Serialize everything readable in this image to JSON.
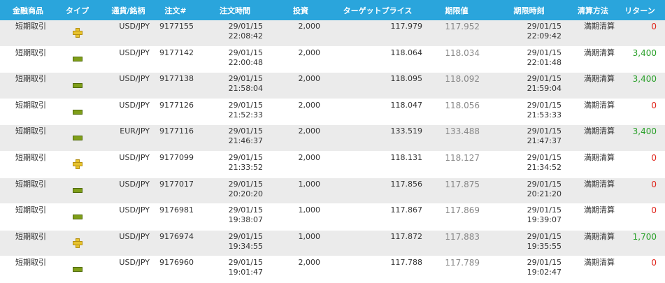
{
  "headers": [
    "金融商品",
    "タイプ",
    "通貨/銘柄",
    "注文#",
    "注文時間",
    "投資",
    "ターゲットプライス",
    "期限値",
    "期限時刻",
    "清算方法",
    "リターン"
  ],
  "rows": [
    {
      "product": "短期取引",
      "type": "plus-icon",
      "pair": "USD/JPY",
      "order": "9177155",
      "order_date": "29/01/15",
      "order_time": "22:08:42",
      "invest": "2,000",
      "target": "117.979",
      "expiry_value": "117.952",
      "expiry_date": "29/01/15",
      "expiry_time": "22:09:42",
      "method": "満期清算",
      "ret": "0",
      "ret_color": "#e0281f"
    },
    {
      "product": "短期取引",
      "type": "minus-icon",
      "pair": "USD/JPY",
      "order": "9177142",
      "order_date": "29/01/15",
      "order_time": "22:00:48",
      "invest": "2,000",
      "target": "118.064",
      "expiry_value": "118.034",
      "expiry_date": "29/01/15",
      "expiry_time": "22:01:48",
      "method": "満期清算",
      "ret": "3,400",
      "ret_color": "#2aa02a"
    },
    {
      "product": "短期取引",
      "type": "minus-icon",
      "pair": "USD/JPY",
      "order": "9177138",
      "order_date": "29/01/15",
      "order_time": "21:58:04",
      "invest": "2,000",
      "target": "118.095",
      "expiry_value": "118.092",
      "expiry_date": "29/01/15",
      "expiry_time": "21:59:04",
      "method": "満期清算",
      "ret": "3,400",
      "ret_color": "#2aa02a"
    },
    {
      "product": "短期取引",
      "type": "minus-icon",
      "pair": "USD/JPY",
      "order": "9177126",
      "order_date": "29/01/15",
      "order_time": "21:52:33",
      "invest": "2,000",
      "target": "118.047",
      "expiry_value": "118.056",
      "expiry_date": "29/01/15",
      "expiry_time": "21:53:33",
      "method": "満期清算",
      "ret": "0",
      "ret_color": "#e0281f"
    },
    {
      "product": "短期取引",
      "type": "minus-icon",
      "pair": "EUR/JPY",
      "order": "9177116",
      "order_date": "29/01/15",
      "order_time": "21:46:37",
      "invest": "2,000",
      "target": "133.519",
      "expiry_value": "133.488",
      "expiry_date": "29/01/15",
      "expiry_time": "21:47:37",
      "method": "満期清算",
      "ret": "3,400",
      "ret_color": "#2aa02a"
    },
    {
      "product": "短期取引",
      "type": "plus-icon",
      "pair": "USD/JPY",
      "order": "9177099",
      "order_date": "29/01/15",
      "order_time": "21:33:52",
      "invest": "2,000",
      "target": "118.131",
      "expiry_value": "118.127",
      "expiry_date": "29/01/15",
      "expiry_time": "21:34:52",
      "method": "満期清算",
      "ret": "0",
      "ret_color": "#e0281f"
    },
    {
      "product": "短期取引",
      "type": "minus-icon",
      "pair": "USD/JPY",
      "order": "9177017",
      "order_date": "29/01/15",
      "order_time": "20:20:20",
      "invest": "1,000",
      "target": "117.856",
      "expiry_value": "117.875",
      "expiry_date": "29/01/15",
      "expiry_time": "20:21:20",
      "method": "満期清算",
      "ret": "0",
      "ret_color": "#e0281f"
    },
    {
      "product": "短期取引",
      "type": "minus-icon",
      "pair": "USD/JPY",
      "order": "9176981",
      "order_date": "29/01/15",
      "order_time": "19:38:07",
      "invest": "1,000",
      "target": "117.867",
      "expiry_value": "117.869",
      "expiry_date": "29/01/15",
      "expiry_time": "19:39:07",
      "method": "満期清算",
      "ret": "0",
      "ret_color": "#e0281f"
    },
    {
      "product": "短期取引",
      "type": "plus-icon",
      "pair": "USD/JPY",
      "order": "9176974",
      "order_date": "29/01/15",
      "order_time": "19:34:55",
      "invest": "1,000",
      "target": "117.872",
      "expiry_value": "117.883",
      "expiry_date": "29/01/15",
      "expiry_time": "19:35:55",
      "method": "満期清算",
      "ret": "1,700",
      "ret_color": "#2aa02a"
    },
    {
      "product": "短期取引",
      "type": "minus-icon",
      "pair": "USD/JPY",
      "order": "9176960",
      "order_date": "29/01/15",
      "order_time": "19:01:47",
      "invest": "2,000",
      "target": "117.788",
      "expiry_value": "117.789",
      "expiry_date": "29/01/15",
      "expiry_time": "19:02:47",
      "method": "満期清算",
      "ret": "0",
      "ret_color": "#e0281f"
    }
  ],
  "colors": {
    "header_bg": "#2aa5dc",
    "row_alt": "#ebebeb",
    "plus_icon": "#e8c32d",
    "minus_icon": "#7f9e19",
    "return_positive": "#2aa02a",
    "return_zero": "#e0281f"
  }
}
